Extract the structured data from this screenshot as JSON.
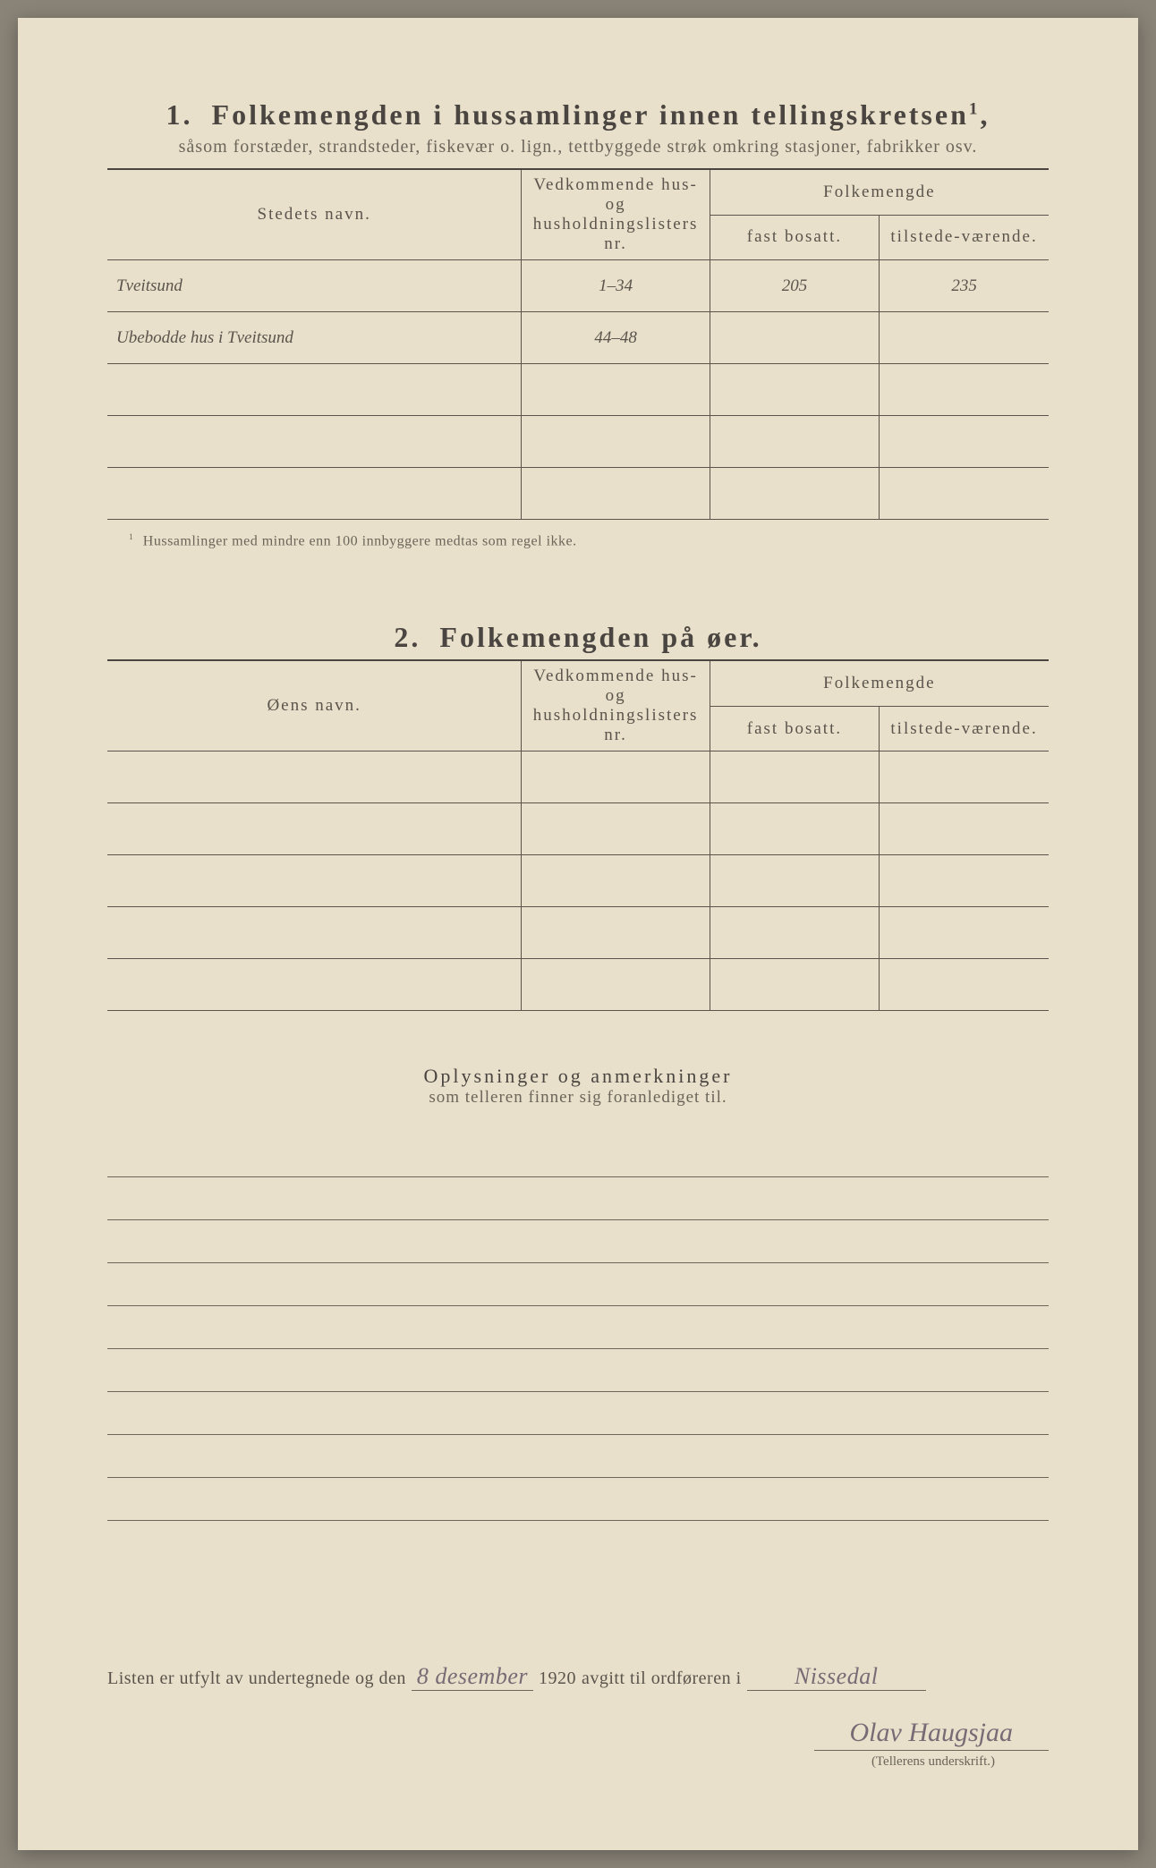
{
  "section1": {
    "number": "1.",
    "title": "Folkemengden i hussamlinger innen tellingskretsen",
    "titlesup": "1",
    "subtitle": "såsom forstæder, strandsteder, fiskevær o. lign., tettbyggede strøk omkring stasjoner, fabrikker osv.",
    "headers": {
      "name": "Stedets navn.",
      "lists": "Vedkommende hus- og husholdningslisters nr.",
      "folkemengde": "Folkemengde",
      "fast": "fast bosatt.",
      "tilstede": "tilstede-værende."
    },
    "rows": [
      {
        "name": "Tveitsund",
        "lists": "1–34",
        "fast": "205",
        "til": "235"
      },
      {
        "name": "Ubebodde hus i Tveitsund",
        "lists": "44–48",
        "fast": "",
        "til": ""
      },
      {
        "name": "",
        "lists": "",
        "fast": "",
        "til": ""
      },
      {
        "name": "",
        "lists": "",
        "fast": "",
        "til": ""
      },
      {
        "name": "",
        "lists": "",
        "fast": "",
        "til": ""
      }
    ],
    "footnote": "Hussamlinger med mindre enn 100 innbyggere medtas som regel ikke."
  },
  "section2": {
    "number": "2.",
    "title": "Folkemengden på øer.",
    "headers": {
      "name": "Øens navn.",
      "lists": "Vedkommende hus- og husholdningslisters nr.",
      "folkemengde": "Folkemengde",
      "fast": "fast bosatt.",
      "tilstede": "tilstede-værende."
    },
    "rows": [
      {
        "name": "",
        "lists": "",
        "fast": "",
        "til": ""
      },
      {
        "name": "",
        "lists": "",
        "fast": "",
        "til": ""
      },
      {
        "name": "",
        "lists": "",
        "fast": "",
        "til": ""
      },
      {
        "name": "",
        "lists": "",
        "fast": "",
        "til": ""
      },
      {
        "name": "",
        "lists": "",
        "fast": "",
        "til": ""
      }
    ]
  },
  "oplys": {
    "title": "Oplysninger og anmerkninger",
    "sub": "som telleren finner sig foranlediget til."
  },
  "bottom": {
    "line_pre": "Listen er utfylt av undertegnede og den",
    "date_day": "8 desember",
    "year": "1920",
    "line_mid": "avgitt til ordføreren i",
    "place": "Nissedal",
    "signature": "Olav Haugsjaa",
    "sig_caption": "(Tellerens underskrift.)"
  },
  "styling": {
    "page_bg": "#e8e0ca",
    "text_color": "#4a4540",
    "line_color": "#5a544c",
    "handwriting_color": "#7a6a75"
  }
}
